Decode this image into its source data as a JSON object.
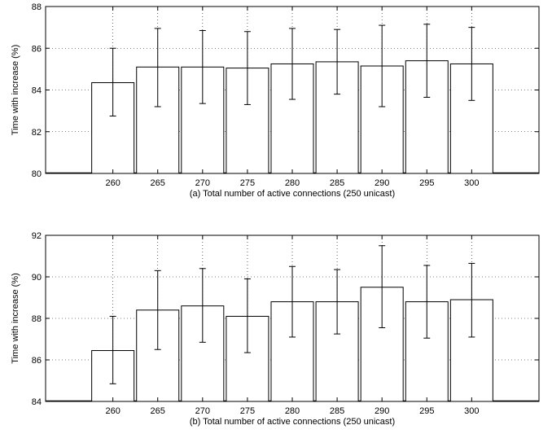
{
  "chart_data": [
    {
      "type": "bar",
      "categories": [
        "260",
        "265",
        "270",
        "275",
        "280",
        "285",
        "290",
        "295",
        "300"
      ],
      "values": [
        84.35,
        85.1,
        85.1,
        85.05,
        85.25,
        85.35,
        85.15,
        85.4,
        85.25
      ],
      "error_low": [
        82.75,
        83.2,
        83.35,
        83.3,
        83.55,
        83.8,
        83.2,
        83.65,
        83.5
      ],
      "error_high": [
        86.0,
        86.95,
        86.85,
        86.8,
        86.95,
        86.9,
        87.1,
        87.15,
        87.0
      ],
      "xlabel": "(a) Total number of active connections (250 unicast)",
      "ylabel": "Time with increase (%)",
      "ylim": [
        80,
        88
      ],
      "yticks": [
        "80",
        "82",
        "84",
        "86",
        "88"
      ],
      "grid": true
    },
    {
      "type": "bar",
      "categories": [
        "260",
        "265",
        "270",
        "275",
        "280",
        "285",
        "290",
        "295",
        "300"
      ],
      "values": [
        86.45,
        88.4,
        88.6,
        88.1,
        88.8,
        88.8,
        89.5,
        88.8,
        88.9
      ],
      "error_low": [
        84.85,
        86.5,
        86.85,
        86.35,
        87.1,
        87.25,
        87.55,
        87.05,
        87.1
      ],
      "error_high": [
        88.1,
        90.3,
        90.4,
        89.9,
        90.5,
        90.35,
        91.5,
        90.55,
        90.65
      ],
      "xlabel": "(b) Total number of active connections (250 unicast)",
      "ylabel": "Time with increase (%)",
      "ylim": [
        84,
        92
      ],
      "yticks": [
        "84",
        "86",
        "88",
        "90",
        "92"
      ],
      "grid": true
    }
  ]
}
